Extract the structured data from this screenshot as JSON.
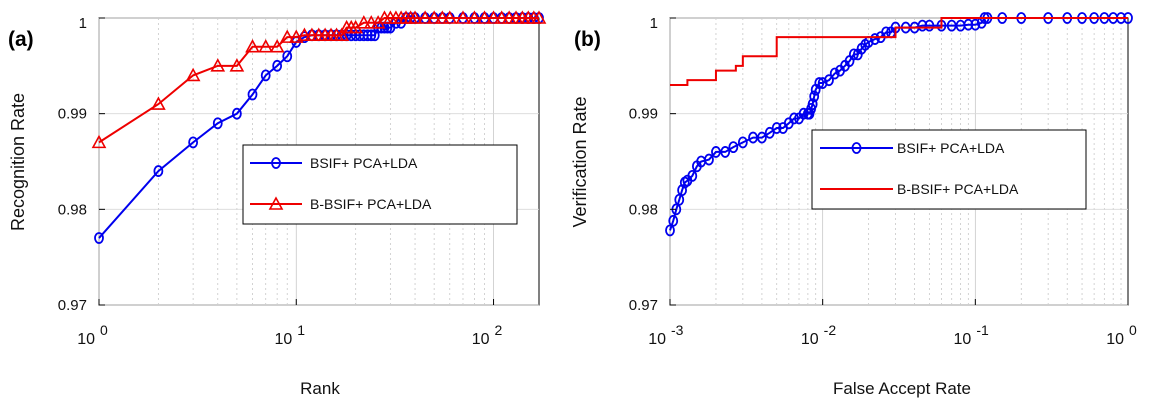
{
  "chart_data": [
    {
      "type": "line",
      "panel_label": "(a)",
      "xlabel": "Rank",
      "ylabel": "Recognition Rate",
      "xscale": "log",
      "xlim": [
        1,
        170
      ],
      "ylim": [
        0.97,
        1.0
      ],
      "x_ticks": [
        {
          "base": "10",
          "exp": "0",
          "v": 1
        },
        {
          "base": "10",
          "exp": "1",
          "v": 10
        },
        {
          "base": "10",
          "exp": "2",
          "v": 100
        }
      ],
      "y_ticks": [
        "0.97",
        "0.98",
        "0.99",
        "1"
      ],
      "grid": true,
      "legend_position": "center-right",
      "series": [
        {
          "name": "BSIF+ PCA+LDA",
          "color": "#0000ee",
          "marker": "circle",
          "x": [
            1,
            2,
            3,
            4,
            5,
            6,
            7,
            8,
            9,
            10,
            11,
            12,
            13,
            14,
            15,
            16,
            17,
            18,
            19,
            20,
            21,
            22,
            23,
            24,
            25,
            26,
            27,
            28,
            29,
            30,
            32,
            34,
            36,
            38,
            40,
            45,
            50,
            55,
            60,
            70,
            80,
            90,
            100,
            110,
            120,
            130,
            140,
            150,
            160,
            170
          ],
          "y": [
            0.977,
            0.984,
            0.987,
            0.989,
            0.99,
            0.992,
            0.994,
            0.995,
            0.996,
            0.9975,
            0.998,
            0.9982,
            0.9982,
            0.9982,
            0.9982,
            0.9982,
            0.9982,
            0.9982,
            0.9982,
            0.9982,
            0.9982,
            0.9982,
            0.9982,
            0.9982,
            0.9982,
            0.999,
            0.999,
            0.999,
            0.999,
            0.999,
            0.9995,
            0.9995,
            1.0,
            1.0,
            1.0,
            1.0,
            1.0,
            1.0,
            1.0,
            1.0,
            1.0,
            1.0,
            1.0,
            1.0,
            1.0,
            1.0,
            1.0,
            1.0,
            1.0,
            1.0
          ]
        },
        {
          "name": "B-BSIF+ PCA+LDA",
          "color": "#ee0000",
          "marker": "triangle",
          "x": [
            1,
            2,
            3,
            4,
            5,
            6,
            7,
            8,
            9,
            10,
            11,
            12,
            13,
            14,
            15,
            16,
            17,
            18,
            19,
            20,
            22,
            24,
            26,
            28,
            30,
            32,
            34,
            36,
            38,
            40,
            45,
            50,
            55,
            60,
            70,
            80,
            90,
            100,
            110,
            120,
            130,
            140,
            150,
            160,
            170
          ],
          "y": [
            0.987,
            0.991,
            0.994,
            0.995,
            0.995,
            0.997,
            0.997,
            0.997,
            0.998,
            0.998,
            0.9982,
            0.9982,
            0.9982,
            0.9982,
            0.9982,
            0.9982,
            0.9982,
            0.999,
            0.999,
            0.999,
            0.9995,
            0.9995,
            0.9995,
            1.0,
            1.0,
            1.0,
            1.0,
            1.0,
            1.0,
            1.0,
            1.0,
            1.0,
            1.0,
            1.0,
            1.0,
            1.0,
            1.0,
            1.0,
            1.0,
            1.0,
            1.0,
            1.0,
            1.0,
            1.0,
            1.0
          ]
        }
      ]
    },
    {
      "type": "line",
      "panel_label": "(b)",
      "xlabel": "False Accept Rate",
      "ylabel": "Verification Rate",
      "xscale": "log",
      "xlim": [
        0.001,
        1
      ],
      "ylim": [
        0.97,
        1.0
      ],
      "x_ticks": [
        {
          "base": "10",
          "exp": "-3",
          "v": 0.001
        },
        {
          "base": "10",
          "exp": "-2",
          "v": 0.01
        },
        {
          "base": "10",
          "exp": "-1",
          "v": 0.1
        },
        {
          "base": "10",
          "exp": "0",
          "v": 1
        }
      ],
      "y_ticks": [
        "0.97",
        "0.98",
        "0.99",
        "1"
      ],
      "grid": true,
      "legend_position": "center-right",
      "series": [
        {
          "name": "BSIF+ PCA+LDA",
          "color": "#0000ee",
          "marker": "circle",
          "x": [
            0.001,
            0.00105,
            0.0011,
            0.00115,
            0.0012,
            0.00125,
            0.0013,
            0.0014,
            0.0015,
            0.0016,
            0.0018,
            0.002,
            0.0023,
            0.0026,
            0.003,
            0.0035,
            0.004,
            0.0045,
            0.005,
            0.0055,
            0.006,
            0.0065,
            0.007,
            0.0075,
            0.008,
            0.0082,
            0.0084,
            0.0086,
            0.0088,
            0.009,
            0.0095,
            0.01,
            0.011,
            0.012,
            0.013,
            0.014,
            0.015,
            0.016,
            0.017,
            0.018,
            0.019,
            0.02,
            0.022,
            0.024,
            0.026,
            0.028,
            0.03,
            0.035,
            0.04,
            0.045,
            0.05,
            0.06,
            0.07,
            0.08,
            0.09,
            0.1,
            0.11,
            0.115,
            0.12,
            0.15,
            0.2,
            0.3,
            0.4,
            0.5,
            0.6,
            0.7,
            0.8,
            0.9,
            1.0
          ],
          "y": [
            0.9778,
            0.9788,
            0.98,
            0.981,
            0.982,
            0.9828,
            0.983,
            0.9835,
            0.9845,
            0.985,
            0.9852,
            0.986,
            0.986,
            0.9865,
            0.987,
            0.9875,
            0.9875,
            0.988,
            0.9885,
            0.9885,
            0.989,
            0.9895,
            0.9895,
            0.99,
            0.99,
            0.99,
            0.9905,
            0.991,
            0.9918,
            0.9925,
            0.9932,
            0.9932,
            0.9935,
            0.9942,
            0.9945,
            0.995,
            0.9955,
            0.9962,
            0.9962,
            0.9968,
            0.9972,
            0.9975,
            0.9978,
            0.998,
            0.9985,
            0.9985,
            0.999,
            0.999,
            0.999,
            0.9992,
            0.9992,
            0.9992,
            0.9992,
            0.9992,
            0.9993,
            0.9993,
            0.9995,
            1.0,
            1.0,
            1.0,
            1.0,
            1.0,
            1.0,
            1.0,
            1.0,
            1.0,
            1.0,
            1.0,
            1.0
          ]
        },
        {
          "name": "B-BSIF+ PCA+LDA",
          "color": "#ee0000",
          "marker": "none",
          "x": [
            0.001,
            0.0013,
            0.0013,
            0.002,
            0.002,
            0.0027,
            0.0027,
            0.003,
            0.003,
            0.005,
            0.005,
            0.03,
            0.03,
            0.06,
            0.06,
            1.0
          ],
          "y": [
            0.993,
            0.993,
            0.9935,
            0.9935,
            0.9945,
            0.9945,
            0.995,
            0.995,
            0.996,
            0.996,
            0.998,
            0.998,
            0.999,
            0.999,
            1.0,
            1.0
          ]
        }
      ]
    }
  ]
}
